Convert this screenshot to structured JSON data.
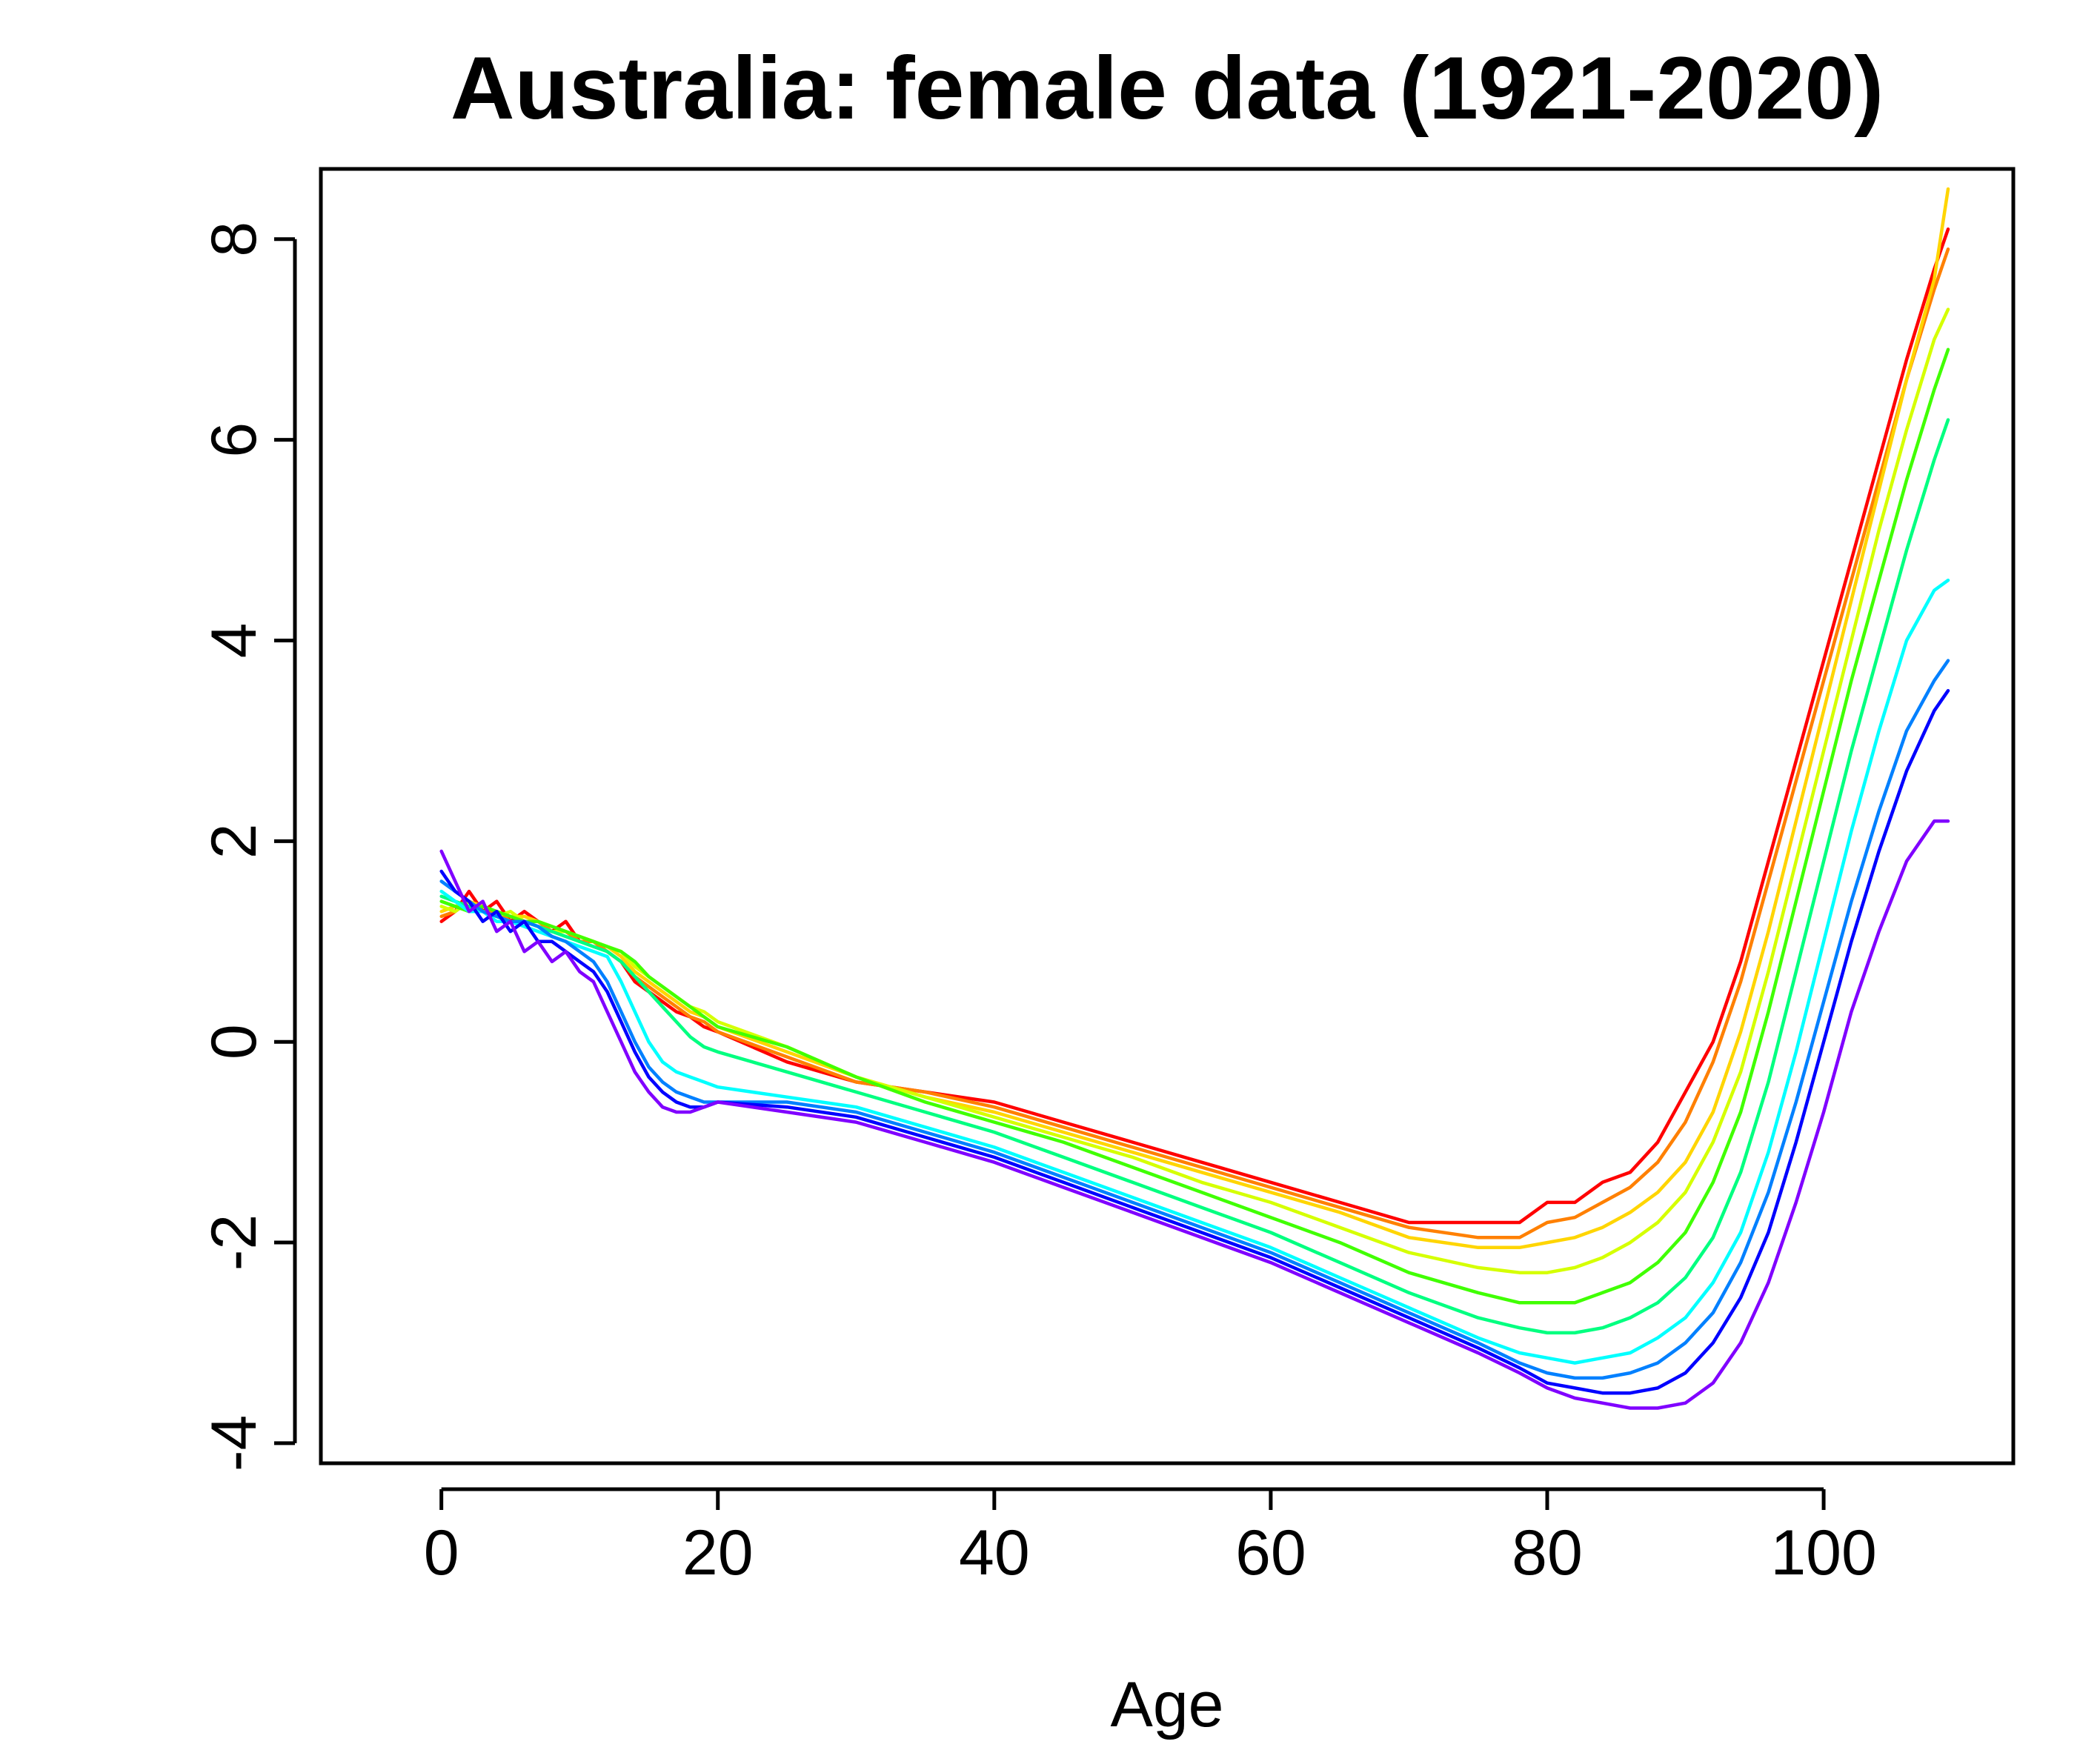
{
  "chart_data": {
    "type": "line",
    "title": "Australia: female data (1921-2020)",
    "xlabel": "Age",
    "ylabel": "",
    "xlim": [
      -8.72,
      113.72
    ],
    "ylim": [
      -4.2,
      8.7
    ],
    "x_ticks": [
      0,
      20,
      40,
      60,
      80,
      100
    ],
    "x_tick_labels": [
      "0",
      "20",
      "40",
      "60",
      "80",
      "100"
    ],
    "y_ticks": [
      -4,
      -2,
      0,
      2,
      4,
      6,
      8
    ],
    "y_tick_labels": [
      "-4",
      "-2",
      "0",
      "2",
      "4",
      "6",
      "8"
    ],
    "grid": false,
    "legend": "none",
    "color_scheme": "rainbow (red for earliest year 1921 through violet for latest year 2020)",
    "colors": [
      "#ff0000",
      "#ff8000",
      "#ffd500",
      "#d5ff00",
      "#40ff00",
      "#00ff80",
      "#00ffff",
      "#0080ff",
      "#0000ff",
      "#8000ff"
    ],
    "x": [
      0,
      1,
      2,
      3,
      4,
      5,
      6,
      7,
      8,
      9,
      10,
      11,
      12,
      13,
      14,
      15,
      16,
      17,
      18,
      19,
      20,
      25,
      30,
      35,
      40,
      45,
      50,
      55,
      60,
      65,
      70,
      75,
      78,
      80,
      82,
      84,
      86,
      88,
      90,
      92,
      94,
      96,
      98,
      100,
      102,
      104,
      106,
      108,
      109
    ],
    "series": [
      {
        "values": [
          1.2,
          1.3,
          1.5,
          1.3,
          1.4,
          1.2,
          1.3,
          1.2,
          1.1,
          1.2,
          1.0,
          1.0,
          0.9,
          0.8,
          0.6,
          0.5,
          0.4,
          0.3,
          0.25,
          0.15,
          0.1,
          -0.2,
          -0.4,
          -0.5,
          -0.6,
          -0.8,
          -1.0,
          -1.2,
          -1.4,
          -1.6,
          -1.8,
          -1.8,
          -1.8,
          -1.6,
          -1.6,
          -1.4,
          -1.3,
          -1.0,
          -0.5,
          0.0,
          0.8,
          1.8,
          2.8,
          3.8,
          4.8,
          5.8,
          6.8,
          7.7,
          8.1
        ]
      },
      {
        "values": [
          1.25,
          1.3,
          1.4,
          1.3,
          1.3,
          1.2,
          1.2,
          1.2,
          1.1,
          1.1,
          1.0,
          1.0,
          0.9,
          0.8,
          0.65,
          0.55,
          0.45,
          0.35,
          0.25,
          0.2,
          0.1,
          -0.15,
          -0.4,
          -0.5,
          -0.65,
          -0.85,
          -1.05,
          -1.25,
          -1.45,
          -1.65,
          -1.85,
          -1.95,
          -1.95,
          -1.8,
          -1.75,
          -1.6,
          -1.45,
          -1.2,
          -0.8,
          -0.2,
          0.6,
          1.6,
          2.6,
          3.6,
          4.6,
          5.6,
          6.6,
          7.5,
          7.9
        ]
      },
      {
        "values": [
          1.3,
          1.35,
          1.4,
          1.35,
          1.3,
          1.25,
          1.25,
          1.2,
          1.15,
          1.1,
          1.05,
          1.0,
          0.95,
          0.85,
          0.7,
          0.6,
          0.5,
          0.4,
          0.3,
          0.25,
          0.15,
          -0.1,
          -0.35,
          -0.55,
          -0.7,
          -0.9,
          -1.1,
          -1.3,
          -1.5,
          -1.7,
          -1.95,
          -2.05,
          -2.05,
          -2.0,
          -1.95,
          -1.85,
          -1.7,
          -1.5,
          -1.2,
          -0.7,
          0.1,
          1.1,
          2.2,
          3.3,
          4.4,
          5.5,
          6.6,
          7.6,
          8.5
        ]
      },
      {
        "values": [
          1.35,
          1.3,
          1.4,
          1.3,
          1.25,
          1.3,
          1.2,
          1.15,
          1.1,
          1.1,
          1.05,
          1.0,
          0.95,
          0.9,
          0.75,
          0.65,
          0.55,
          0.45,
          0.35,
          0.3,
          0.2,
          -0.05,
          -0.35,
          -0.55,
          -0.75,
          -0.95,
          -1.15,
          -1.4,
          -1.6,
          -1.85,
          -2.1,
          -2.25,
          -2.3,
          -2.3,
          -2.25,
          -2.15,
          -2.0,
          -1.8,
          -1.5,
          -1.0,
          -0.3,
          0.7,
          1.8,
          2.9,
          4.0,
          5.1,
          6.1,
          7.0,
          7.3
        ]
      },
      {
        "values": [
          1.4,
          1.35,
          1.3,
          1.35,
          1.3,
          1.25,
          1.2,
          1.2,
          1.15,
          1.1,
          1.05,
          1.0,
          0.95,
          0.9,
          0.8,
          0.65,
          0.55,
          0.45,
          0.35,
          0.25,
          0.15,
          -0.05,
          -0.35,
          -0.6,
          -0.8,
          -1.0,
          -1.25,
          -1.5,
          -1.75,
          -2.0,
          -2.3,
          -2.5,
          -2.6,
          -2.6,
          -2.6,
          -2.5,
          -2.4,
          -2.2,
          -1.9,
          -1.4,
          -0.7,
          0.3,
          1.4,
          2.5,
          3.6,
          4.6,
          5.6,
          6.5,
          6.9
        ]
      },
      {
        "values": [
          1.45,
          1.4,
          1.35,
          1.3,
          1.25,
          1.2,
          1.2,
          1.15,
          1.1,
          1.05,
          1.0,
          0.95,
          0.9,
          0.8,
          0.65,
          0.5,
          0.35,
          0.2,
          0.05,
          -0.05,
          -0.1,
          -0.3,
          -0.5,
          -0.7,
          -0.9,
          -1.15,
          -1.4,
          -1.65,
          -1.9,
          -2.2,
          -2.5,
          -2.75,
          -2.85,
          -2.9,
          -2.9,
          -2.85,
          -2.75,
          -2.6,
          -2.35,
          -1.95,
          -1.3,
          -0.4,
          0.7,
          1.8,
          2.9,
          3.9,
          4.9,
          5.8,
          6.2
        ]
      },
      {
        "values": [
          1.5,
          1.4,
          1.3,
          1.3,
          1.2,
          1.2,
          1.15,
          1.1,
          1.05,
          1.0,
          0.95,
          0.9,
          0.85,
          0.6,
          0.3,
          0.0,
          -0.2,
          -0.3,
          -0.35,
          -0.4,
          -0.45,
          -0.55,
          -0.65,
          -0.85,
          -1.05,
          -1.3,
          -1.55,
          -1.8,
          -2.05,
          -2.35,
          -2.65,
          -2.95,
          -3.1,
          -3.15,
          -3.2,
          -3.15,
          -3.1,
          -2.95,
          -2.75,
          -2.4,
          -1.9,
          -1.1,
          -0.1,
          1.0,
          2.1,
          3.1,
          4.0,
          4.5,
          4.6
        ]
      },
      {
        "values": [
          1.6,
          1.5,
          1.4,
          1.3,
          1.25,
          1.2,
          1.2,
          1.15,
          1.05,
          1.0,
          0.9,
          0.8,
          0.6,
          0.3,
          0.0,
          -0.25,
          -0.4,
          -0.5,
          -0.55,
          -0.6,
          -0.6,
          -0.6,
          -0.7,
          -0.9,
          -1.1,
          -1.35,
          -1.6,
          -1.85,
          -2.1,
          -2.4,
          -2.7,
          -3.0,
          -3.2,
          -3.3,
          -3.35,
          -3.35,
          -3.3,
          -3.2,
          -3.0,
          -2.7,
          -2.2,
          -1.5,
          -0.6,
          0.4,
          1.4,
          2.3,
          3.1,
          3.6,
          3.8
        ]
      },
      {
        "values": [
          1.7,
          1.5,
          1.4,
          1.2,
          1.3,
          1.1,
          1.2,
          1.0,
          1.0,
          0.9,
          0.8,
          0.7,
          0.5,
          0.2,
          -0.1,
          -0.35,
          -0.5,
          -0.6,
          -0.65,
          -0.65,
          -0.6,
          -0.65,
          -0.75,
          -0.95,
          -1.15,
          -1.4,
          -1.65,
          -1.9,
          -2.15,
          -2.45,
          -2.75,
          -3.05,
          -3.25,
          -3.4,
          -3.45,
          -3.5,
          -3.5,
          -3.45,
          -3.3,
          -3.0,
          -2.55,
          -1.9,
          -1.0,
          0.0,
          1.0,
          1.9,
          2.7,
          3.3,
          3.5
        ]
      },
      {
        "values": [
          1.9,
          1.6,
          1.3,
          1.4,
          1.1,
          1.2,
          0.9,
          1.0,
          0.8,
          0.9,
          0.7,
          0.6,
          0.3,
          0.0,
          -0.3,
          -0.5,
          -0.65,
          -0.7,
          -0.7,
          -0.65,
          -0.6,
          -0.7,
          -0.8,
          -1.0,
          -1.2,
          -1.45,
          -1.7,
          -1.95,
          -2.2,
          -2.5,
          -2.8,
          -3.1,
          -3.3,
          -3.45,
          -3.55,
          -3.6,
          -3.65,
          -3.65,
          -3.6,
          -3.4,
          -3.0,
          -2.4,
          -1.6,
          -0.7,
          0.3,
          1.1,
          1.8,
          2.2,
          2.2
        ]
      }
    ]
  }
}
